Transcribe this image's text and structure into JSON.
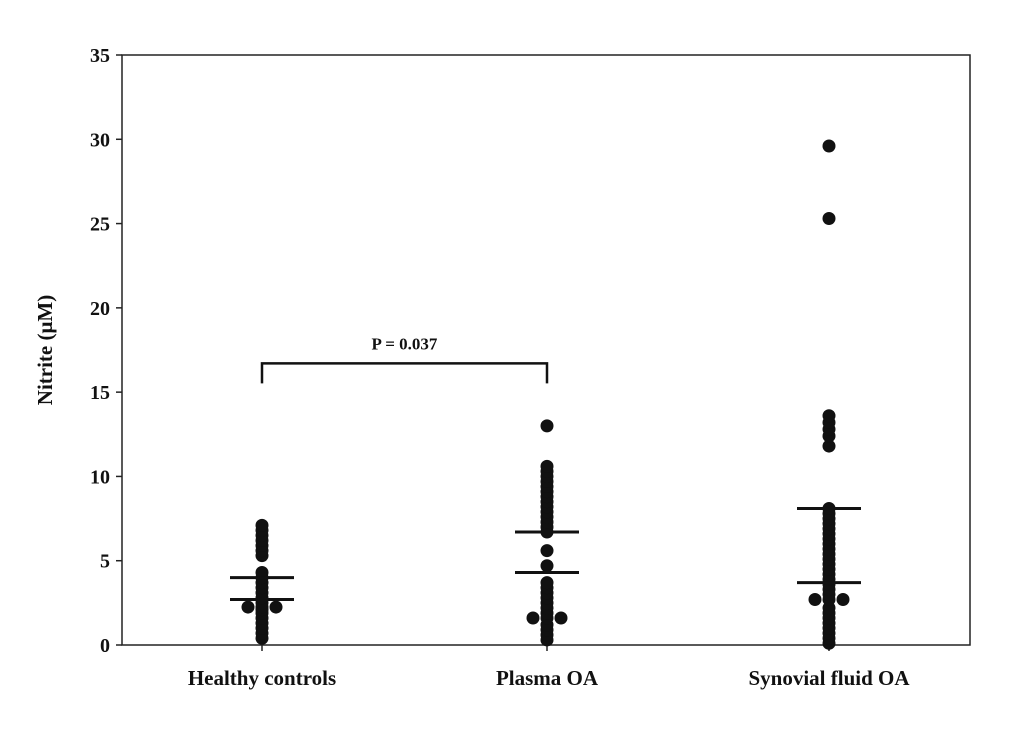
{
  "chart_data": {
    "type": "scatter",
    "title": "",
    "xlabel": "",
    "ylabel": "Nitrite (μM)",
    "ylim": [
      0,
      35
    ],
    "yticks": [
      0,
      5,
      10,
      15,
      20,
      25,
      30,
      35
    ],
    "grid": false,
    "categories": [
      "Healthy controls",
      "Plasma OA",
      "Synovial fluid OA"
    ],
    "series": [
      {
        "name": "Healthy controls",
        "lines": [
          4.0,
          2.7
        ],
        "values": [
          0.4,
          0.7,
          1.0,
          1.3,
          1.6,
          1.9,
          2.1,
          2.25,
          2.25,
          2.25,
          2.5,
          2.8,
          3.1,
          3.4,
          3.7,
          4.0,
          4.3,
          5.3,
          5.6,
          5.9,
          6.2,
          6.5,
          6.8,
          7.1
        ]
      },
      {
        "name": "Plasma OA",
        "lines": [
          6.7,
          4.3
        ],
        "values": [
          0.3,
          0.6,
          0.9,
          1.2,
          1.6,
          1.6,
          1.6,
          1.9,
          2.2,
          2.5,
          2.8,
          3.1,
          3.4,
          3.7,
          4.7,
          5.6,
          6.7,
          7.0,
          7.3,
          7.6,
          7.9,
          8.2,
          8.5,
          8.8,
          9.1,
          9.4,
          9.7,
          10.0,
          10.3,
          10.6,
          13.0
        ]
      },
      {
        "name": "Synovial fluid OA",
        "lines": [
          8.1,
          3.7
        ],
        "values": [
          0.1,
          0.4,
          0.7,
          1.0,
          1.3,
          1.6,
          1.9,
          2.2,
          2.7,
          2.7,
          2.7,
          3.0,
          3.3,
          3.6,
          3.9,
          4.2,
          4.5,
          4.8,
          5.1,
          5.4,
          5.7,
          6.0,
          6.3,
          6.6,
          6.9,
          7.2,
          7.5,
          7.8,
          8.1,
          11.8,
          12.4,
          12.8,
          13.2,
          13.6,
          25.3,
          29.6
        ]
      }
    ],
    "annotations": [
      {
        "text": "P = 0.037",
        "from": "Healthy controls",
        "to": "Plasma OA",
        "y": 17
      }
    ]
  }
}
